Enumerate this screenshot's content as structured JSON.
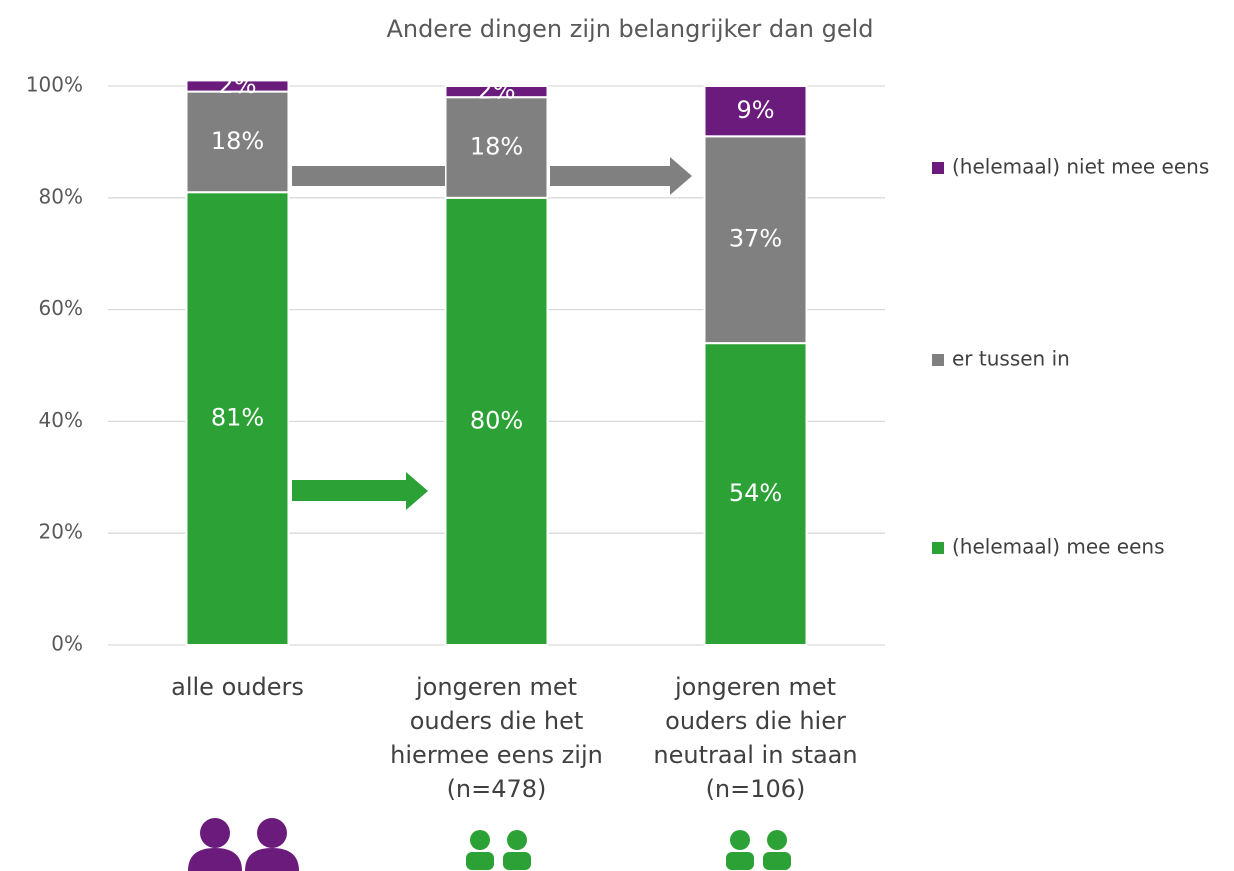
{
  "chart_data": {
    "type": "stacked_bar",
    "title": "Andere dingen zijn belangrijker dan geld",
    "categories": [
      "alle ouders",
      "jongeren met\nouders die het\nhiermee eens zijn\n(n=478)",
      "jongeren met\nouders die hier\nneutraal in staan\n(n=106)"
    ],
    "series": [
      {
        "name": "(helemaal) mee eens",
        "color": "#2ca236",
        "values": [
          81,
          80,
          54
        ],
        "value_labels": [
          "81%",
          "80%",
          "54%"
        ]
      },
      {
        "name": "er tussen in",
        "color": "#808080",
        "values": [
          18,
          18,
          37
        ],
        "value_labels": [
          "18%",
          "18%",
          "37%"
        ]
      },
      {
        "name": "(helemaal) niet mee eens",
        "color": "#6a1b7c",
        "values": [
          2,
          2,
          9
        ],
        "value_labels": [
          "2%",
          "2%",
          "9%"
        ]
      }
    ],
    "ylim": [
      0,
      100
    ],
    "yticks": [
      {
        "value": 0,
        "label": "0%"
      },
      {
        "value": 20,
        "label": "20%"
      },
      {
        "value": 40,
        "label": "40%"
      },
      {
        "value": 60,
        "label": "60%"
      },
      {
        "value": 80,
        "label": "80%"
      },
      {
        "value": 100,
        "label": "100%"
      }
    ],
    "grid": true,
    "legend": "right"
  }
}
